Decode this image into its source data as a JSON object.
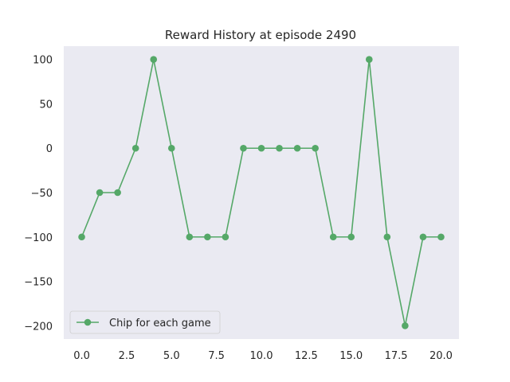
{
  "chart_data": {
    "type": "line",
    "title": "Reward History at episode 2490",
    "xlabel": "",
    "ylabel": "",
    "xlim": [
      -1,
      21
    ],
    "ylim": [
      -215,
      115
    ],
    "grid": false,
    "legend_position": "lower-left",
    "x_ticks": [
      0.0,
      2.5,
      5.0,
      7.5,
      10.0,
      12.5,
      15.0,
      17.5,
      20.0
    ],
    "x_tick_labels": [
      "0.0",
      "2.5",
      "5.0",
      "7.5",
      "10.0",
      "12.5",
      "15.0",
      "17.5",
      "20.0"
    ],
    "y_ticks": [
      100,
      50,
      0,
      -50,
      -100,
      -150,
      -200
    ],
    "y_tick_labels": [
      "100",
      "50",
      "0",
      "−50",
      "−100",
      "−150",
      "−200"
    ],
    "x": [
      0,
      1,
      2,
      3,
      4,
      5,
      6,
      7,
      8,
      9,
      10,
      11,
      12,
      13,
      14,
      15,
      16,
      17,
      18,
      19,
      20
    ],
    "series": [
      {
        "name": "Chip for each game",
        "color": "#55a868",
        "marker": "circle",
        "values": [
          -100,
          -50,
          -50,
          0,
          100,
          0,
          -100,
          -100,
          -100,
          0,
          0,
          0,
          0,
          0,
          -100,
          -100,
          100,
          -100,
          -200,
          -100,
          -100
        ]
      }
    ],
    "plot_background": "#eaeaf2"
  }
}
